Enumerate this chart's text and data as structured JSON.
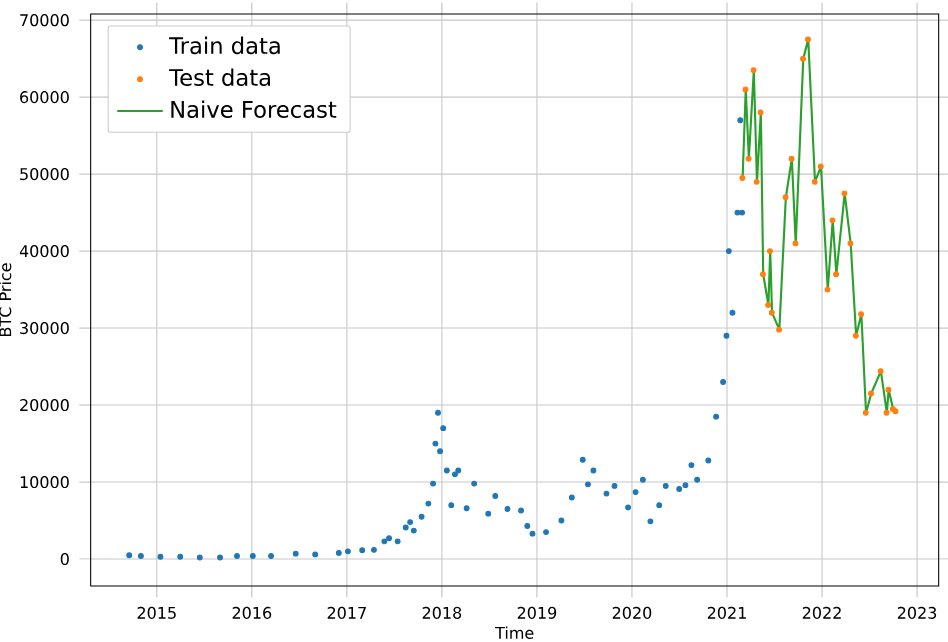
{
  "chart_data": {
    "type": "scatter",
    "xlabel": "Time",
    "ylabel": "BTC Price",
    "xlim": [
      "2014-04-22",
      "2023-03-25"
    ],
    "xticks": [
      "2015",
      "2016",
      "2017",
      "2018",
      "2019",
      "2020",
      "2021",
      "2022",
      "2023"
    ],
    "ylim": [
      -3500,
      70800
    ],
    "yticks": [
      0,
      10000,
      20000,
      30000,
      40000,
      50000,
      60000,
      70000
    ],
    "grid": true,
    "legend": "top left",
    "marker": "circle",
    "series": [
      {
        "name": "Train data",
        "color": "#1f77b4",
        "x": [
          "2014-09-17",
          "2014-11-01",
          "2015-01-15",
          "2015-04-01",
          "2015-06-15",
          "2015-09-01",
          "2015-11-05",
          "2016-01-05",
          "2016-03-15",
          "2016-06-18",
          "2016-09-01",
          "2016-12-01",
          "2017-01-05",
          "2017-03-01",
          "2017-04-15",
          "2017-05-25",
          "2017-06-12",
          "2017-07-15",
          "2017-08-15",
          "2017-09-01",
          "2017-09-15",
          "2017-10-15",
          "2017-11-10",
          "2017-11-28",
          "2017-12-07",
          "2017-12-17",
          "2017-12-25",
          "2018-01-06",
          "2018-01-20",
          "2018-02-06",
          "2018-02-20",
          "2018-03-05",
          "2018-04-06",
          "2018-05-05",
          "2018-06-28",
          "2018-07-25",
          "2018-09-10",
          "2018-11-01",
          "2018-11-25",
          "2018-12-15",
          "2019-02-05",
          "2019-04-05",
          "2019-05-15",
          "2019-06-26",
          "2019-07-16",
          "2019-08-06",
          "2019-09-25",
          "2019-10-26",
          "2019-12-17",
          "2020-01-15",
          "2020-02-12",
          "2020-03-12",
          "2020-04-15",
          "2020-05-10",
          "2020-07-01",
          "2020-07-25",
          "2020-08-17",
          "2020-09-08",
          "2020-10-21",
          "2020-11-20",
          "2020-12-17",
          "2020-12-30",
          "2021-01-08",
          "2021-01-22",
          "2021-02-10",
          "2021-02-21",
          "2021-02-28"
        ],
        "values": [
          500,
          400,
          300,
          300,
          200,
          200,
          400,
          400,
          400,
          700,
          600,
          800,
          1000,
          1150,
          1200,
          2300,
          2700,
          2300,
          4100,
          4800,
          3700,
          5500,
          7200,
          9800,
          15000,
          19000,
          14000,
          17000,
          11500,
          7000,
          11000,
          11500,
          6600,
          9800,
          5900,
          8200,
          6500,
          6300,
          4300,
          3300,
          3500,
          5000,
          8000,
          12900,
          9700,
          11500,
          8500,
          9500,
          6700,
          8700,
          10300,
          4900,
          7000,
          9500,
          9100,
          9600,
          12200,
          10300,
          12800,
          18500,
          23000,
          29000,
          40000,
          32000,
          45000,
          57000,
          45000
        ]
      },
      {
        "name": "Test data",
        "color": "#ff7f0e",
        "x": [
          "2021-03-01",
          "2021-03-13",
          "2021-03-25",
          "2021-04-13",
          "2021-04-25",
          "2021-05-10",
          "2021-05-19",
          "2021-06-08",
          "2021-06-15",
          "2021-06-22",
          "2021-07-20",
          "2021-08-14",
          "2021-09-06",
          "2021-09-21",
          "2021-10-20",
          "2021-11-08",
          "2021-12-04",
          "2021-12-27",
          "2022-01-22",
          "2022-02-10",
          "2022-02-24",
          "2022-03-28",
          "2022-04-20",
          "2022-05-11",
          "2022-05-31",
          "2022-06-18",
          "2022-07-08",
          "2022-08-14",
          "2022-09-06",
          "2022-09-13",
          "2022-09-30",
          "2022-10-10"
        ],
        "values": [
          49500,
          61000,
          52000,
          63500,
          49000,
          58000,
          37000,
          33000,
          40000,
          32000,
          29800,
          47000,
          52000,
          41000,
          65000,
          67500,
          49000,
          51000,
          35000,
          44000,
          37000,
          47500,
          41000,
          29000,
          31800,
          19000,
          21500,
          24400,
          19000,
          22000,
          19500,
          19200
        ]
      },
      {
        "name": "Naive Forecast",
        "color": "#2ca02c",
        "type": "line",
        "marker": "none",
        "x": [
          "2021-03-02",
          "2021-03-14",
          "2021-03-26",
          "2021-04-14",
          "2021-04-26",
          "2021-05-11",
          "2021-05-20",
          "2021-06-09",
          "2021-06-16",
          "2021-06-23",
          "2021-07-21",
          "2021-08-15",
          "2021-09-07",
          "2021-09-22",
          "2021-10-21",
          "2021-11-09",
          "2021-12-05",
          "2021-12-28",
          "2022-01-23",
          "2022-02-11",
          "2022-02-25",
          "2022-03-29",
          "2022-04-21",
          "2022-05-12",
          "2022-06-01",
          "2022-06-19",
          "2022-07-09",
          "2022-08-15",
          "2022-09-07",
          "2022-09-14",
          "2022-10-01",
          "2022-10-11"
        ],
        "values": [
          49500,
          61000,
          52000,
          63500,
          49000,
          58000,
          37000,
          33000,
          40000,
          32000,
          29800,
          47000,
          52000,
          41000,
          65000,
          67500,
          49000,
          51000,
          35000,
          44000,
          37000,
          47500,
          41000,
          29000,
          31800,
          19000,
          21500,
          24400,
          19000,
          22000,
          19500,
          19200
        ]
      }
    ]
  }
}
